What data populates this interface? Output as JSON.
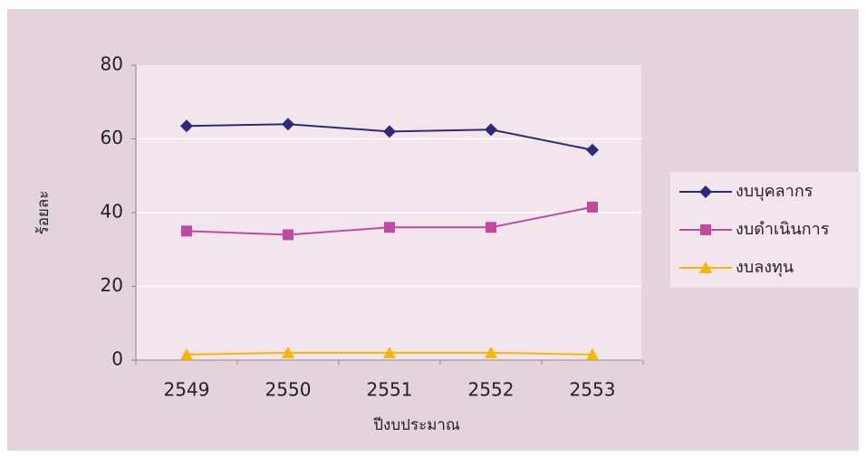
{
  "chart_data": {
    "type": "line",
    "x_label": "ปีงบประมาณ",
    "y_label": "ร้อยละ",
    "categories": [
      "2549",
      "2550",
      "2551",
      "2552",
      "2553"
    ],
    "series": [
      {
        "name": "งบบุคลากร",
        "color": "#2e2a7a",
        "marker": "diamond",
        "values": [
          63.5,
          64,
          62,
          62.5,
          57
        ]
      },
      {
        "name": "งบดำเนินการ",
        "color": "#c04aa0",
        "marker": "square",
        "values": [
          35,
          34,
          36,
          36,
          41.5
        ]
      },
      {
        "name": "งบลงทุน",
        "color": "#f5b800",
        "marker": "triangle",
        "values": [
          1.5,
          2,
          2,
          2,
          1.5
        ]
      }
    ],
    "ylim": [
      0,
      80
    ],
    "yticks": [
      0,
      20,
      40,
      60,
      80
    ],
    "grid": true,
    "legend": "right"
  }
}
